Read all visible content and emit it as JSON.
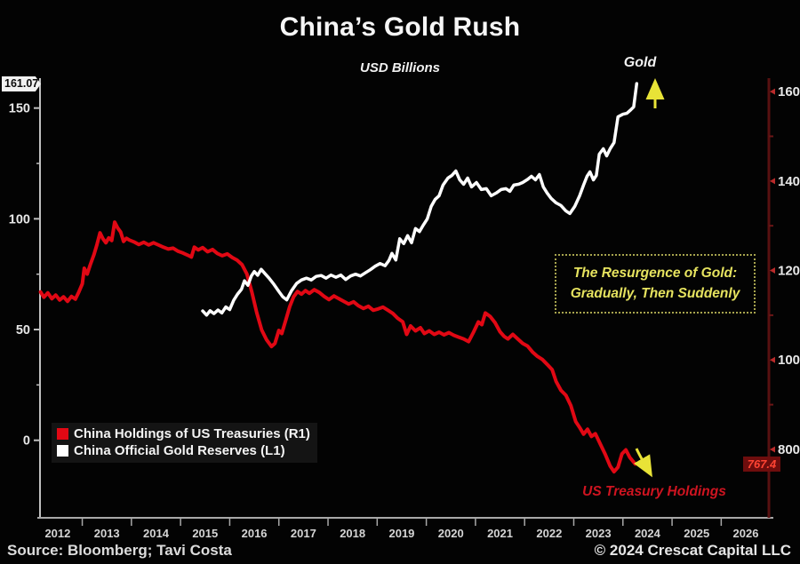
{
  "title": "China’s Gold Rush",
  "subtitle": "USD Billions",
  "labels": {
    "gold_line": "Gold",
    "treasury_line": "US Treasury Holdings"
  },
  "annotation": {
    "line1": "The Resurgence of Gold:",
    "line2": "Gradually, Then Suddenly"
  },
  "legend": [
    {
      "label": "China Holdings of US Treasuries (R1)",
      "color": "#e10814"
    },
    {
      "label": "China Official Gold Reserves (L1)",
      "color": "#ffffff"
    }
  ],
  "markers": {
    "gold_last": "161.07",
    "treasury_last": "767.4"
  },
  "footer": {
    "source": "Source: Bloomberg; Tavi Costa",
    "copyright": "© 2024 Crescat Capital LLC"
  },
  "colors": {
    "background": "#030303",
    "treasury_red": "#e10814",
    "gold_white": "#ffffff",
    "left_axis": "#c0c0c0",
    "bottom_axis": "#a8a8a8",
    "right_axis": "#581111",
    "right_tick": "#b92a2a",
    "right_minor_tick": "#6b1616",
    "axis_text": "#e8e8e8",
    "year_text": "#d5d5d5",
    "annotation_yellow": "#e6e35f",
    "arrow_yellow": "#e8e337"
  },
  "chart_data": {
    "type": "line",
    "title": "China’s Gold Rush",
    "subtitle": "USD Billions",
    "grid": false,
    "legend_position": "bottom-left",
    "x_axis": {
      "years": [
        2012,
        2013,
        2014,
        2015,
        2016,
        2017,
        2018,
        2019,
        2020,
        2021,
        2022,
        2023,
        2024,
        2025,
        2026
      ],
      "range": [
        2012.14,
        2026.97
      ]
    },
    "left_axis": {
      "series": "China Official Gold Reserves (L1)",
      "units": "USD Billions",
      "major_ticks": [
        0,
        50,
        100,
        150
      ],
      "minor_ticks": [
        25,
        75,
        125
      ],
      "range": [
        -35,
        163.5
      ],
      "last_value": 161.07
    },
    "right_axis": {
      "series": "China Holdings of US Treasuries (R1)",
      "units": "USD Billions",
      "major_ticks": [
        800,
        1000,
        1200,
        1400,
        1600
      ],
      "minor_ticks": [
        900,
        1100,
        1300,
        1500
      ],
      "range": [
        647,
        1630
      ],
      "last_value": 767.4
    },
    "series": [
      {
        "name": "China Holdings of US Treasuries (R1)",
        "axis": "right",
        "color": "#e10814",
        "width": 4,
        "points": [
          [
            2012.15,
            1152
          ],
          [
            2012.22,
            1140
          ],
          [
            2012.3,
            1150
          ],
          [
            2012.38,
            1137
          ],
          [
            2012.46,
            1145
          ],
          [
            2012.54,
            1134
          ],
          [
            2012.62,
            1141
          ],
          [
            2012.7,
            1131
          ],
          [
            2012.78,
            1142
          ],
          [
            2012.86,
            1136
          ],
          [
            2012.93,
            1152
          ],
          [
            2013.0,
            1170
          ],
          [
            2013.04,
            1205
          ],
          [
            2013.1,
            1192
          ],
          [
            2013.16,
            1212
          ],
          [
            2013.24,
            1236
          ],
          [
            2013.3,
            1258
          ],
          [
            2013.36,
            1284
          ],
          [
            2013.42,
            1271
          ],
          [
            2013.48,
            1262
          ],
          [
            2013.54,
            1273
          ],
          [
            2013.6,
            1267
          ],
          [
            2013.66,
            1308
          ],
          [
            2013.72,
            1295
          ],
          [
            2013.78,
            1286
          ],
          [
            2013.84,
            1265
          ],
          [
            2013.9,
            1272
          ],
          [
            2013.96,
            1268
          ],
          [
            2014.05,
            1264
          ],
          [
            2014.15,
            1258
          ],
          [
            2014.25,
            1263
          ],
          [
            2014.35,
            1257
          ],
          [
            2014.45,
            1262
          ],
          [
            2014.55,
            1257
          ],
          [
            2014.65,
            1252
          ],
          [
            2014.75,
            1248
          ],
          [
            2014.85,
            1250
          ],
          [
            2014.95,
            1243
          ],
          [
            2015.05,
            1239
          ],
          [
            2015.15,
            1234
          ],
          [
            2015.22,
            1230
          ],
          [
            2015.28,
            1252
          ],
          [
            2015.36,
            1246
          ],
          [
            2015.45,
            1251
          ],
          [
            2015.55,
            1242
          ],
          [
            2015.65,
            1247
          ],
          [
            2015.75,
            1238
          ],
          [
            2015.85,
            1233
          ],
          [
            2015.95,
            1237
          ],
          [
            2016.05,
            1229
          ],
          [
            2016.15,
            1223
          ],
          [
            2016.25,
            1213
          ],
          [
            2016.35,
            1192
          ],
          [
            2016.45,
            1152
          ],
          [
            2016.55,
            1106
          ],
          [
            2016.65,
            1067
          ],
          [
            2016.75,
            1045
          ],
          [
            2016.85,
            1030
          ],
          [
            2016.92,
            1037
          ],
          [
            2017.0,
            1066
          ],
          [
            2017.06,
            1059
          ],
          [
            2017.14,
            1089
          ],
          [
            2017.22,
            1119
          ],
          [
            2017.3,
            1141
          ],
          [
            2017.38,
            1153
          ],
          [
            2017.46,
            1147
          ],
          [
            2017.54,
            1155
          ],
          [
            2017.62,
            1149
          ],
          [
            2017.72,
            1157
          ],
          [
            2017.82,
            1151
          ],
          [
            2017.92,
            1142
          ],
          [
            2018.02,
            1135
          ],
          [
            2018.12,
            1143
          ],
          [
            2018.22,
            1137
          ],
          [
            2018.32,
            1131
          ],
          [
            2018.42,
            1125
          ],
          [
            2018.52,
            1130
          ],
          [
            2018.62,
            1121
          ],
          [
            2018.72,
            1115
          ],
          [
            2018.82,
            1120
          ],
          [
            2018.92,
            1111
          ],
          [
            2019.02,
            1114
          ],
          [
            2019.12,
            1118
          ],
          [
            2019.22,
            1111
          ],
          [
            2019.32,
            1104
          ],
          [
            2019.42,
            1093
          ],
          [
            2019.52,
            1085
          ],
          [
            2019.6,
            1057
          ],
          [
            2019.68,
            1076
          ],
          [
            2019.78,
            1065
          ],
          [
            2019.88,
            1072
          ],
          [
            2019.96,
            1059
          ],
          [
            2020.06,
            1065
          ],
          [
            2020.16,
            1057
          ],
          [
            2020.26,
            1062
          ],
          [
            2020.36,
            1056
          ],
          [
            2020.46,
            1061
          ],
          [
            2020.56,
            1055
          ],
          [
            2020.66,
            1051
          ],
          [
            2020.76,
            1047
          ],
          [
            2020.86,
            1041
          ],
          [
            2020.96,
            1062
          ],
          [
            2021.06,
            1085
          ],
          [
            2021.13,
            1079
          ],
          [
            2021.2,
            1105
          ],
          [
            2021.3,
            1097
          ],
          [
            2021.4,
            1083
          ],
          [
            2021.5,
            1063
          ],
          [
            2021.58,
            1053
          ],
          [
            2021.66,
            1047
          ],
          [
            2021.76,
            1057
          ],
          [
            2021.86,
            1047
          ],
          [
            2021.96,
            1037
          ],
          [
            2022.06,
            1031
          ],
          [
            2022.16,
            1018
          ],
          [
            2022.26,
            1008
          ],
          [
            2022.36,
            1001
          ],
          [
            2022.46,
            990
          ],
          [
            2022.56,
            978
          ],
          [
            2022.64,
            952
          ],
          [
            2022.74,
            932
          ],
          [
            2022.84,
            921
          ],
          [
            2022.94,
            898
          ],
          [
            2023.04,
            862
          ],
          [
            2023.12,
            849
          ],
          [
            2023.2,
            834
          ],
          [
            2023.28,
            845
          ],
          [
            2023.36,
            829
          ],
          [
            2023.44,
            835
          ],
          [
            2023.54,
            812
          ],
          [
            2023.64,
            789
          ],
          [
            2023.74,
            763
          ],
          [
            2023.82,
            750
          ],
          [
            2023.9,
            760
          ],
          [
            2023.98,
            790
          ],
          [
            2024.06,
            799
          ],
          [
            2024.14,
            782
          ],
          [
            2024.25,
            767.4
          ]
        ]
      },
      {
        "name": "China Official Gold Reserves (L1)",
        "axis": "left",
        "color": "#ffffff",
        "width": 3.5,
        "points": [
          [
            2015.45,
            58.4
          ],
          [
            2015.53,
            56.5
          ],
          [
            2015.6,
            58.5
          ],
          [
            2015.68,
            57.2
          ],
          [
            2015.76,
            58.8
          ],
          [
            2015.84,
            57.5
          ],
          [
            2015.92,
            60.2
          ],
          [
            2016.0,
            59.0
          ],
          [
            2016.08,
            63.2
          ],
          [
            2016.16,
            66.0
          ],
          [
            2016.24,
            68.2
          ],
          [
            2016.3,
            72.0
          ],
          [
            2016.37,
            70.0
          ],
          [
            2016.44,
            74.2
          ],
          [
            2016.5,
            76.2
          ],
          [
            2016.57,
            74.5
          ],
          [
            2016.64,
            77.2
          ],
          [
            2016.72,
            75.2
          ],
          [
            2016.8,
            73.2
          ],
          [
            2016.9,
            70.4
          ],
          [
            2017.0,
            67.2
          ],
          [
            2017.08,
            64.8
          ],
          [
            2017.16,
            63.4
          ],
          [
            2017.26,
            67.6
          ],
          [
            2017.36,
            70.8
          ],
          [
            2017.46,
            72.4
          ],
          [
            2017.56,
            73.2
          ],
          [
            2017.66,
            72.4
          ],
          [
            2017.76,
            74.0
          ],
          [
            2017.86,
            74.4
          ],
          [
            2017.96,
            73.2
          ],
          [
            2018.06,
            74.6
          ],
          [
            2018.16,
            73.6
          ],
          [
            2018.26,
            74.6
          ],
          [
            2018.36,
            72.6
          ],
          [
            2018.46,
            74.2
          ],
          [
            2018.56,
            75.0
          ],
          [
            2018.66,
            74.2
          ],
          [
            2018.76,
            75.6
          ],
          [
            2018.86,
            77.0
          ],
          [
            2018.96,
            78.6
          ],
          [
            2019.06,
            79.8
          ],
          [
            2019.16,
            78.8
          ],
          [
            2019.24,
            81.2
          ],
          [
            2019.3,
            84.4
          ],
          [
            2019.38,
            81.4
          ],
          [
            2019.46,
            91.0
          ],
          [
            2019.54,
            88.8
          ],
          [
            2019.62,
            92.4
          ],
          [
            2019.7,
            89.2
          ],
          [
            2019.78,
            95.6
          ],
          [
            2019.86,
            94.2
          ],
          [
            2019.94,
            97.2
          ],
          [
            2020.02,
            100.0
          ],
          [
            2020.1,
            105.6
          ],
          [
            2020.18,
            108.8
          ],
          [
            2020.26,
            110.4
          ],
          [
            2020.34,
            115.2
          ],
          [
            2020.44,
            118.4
          ],
          [
            2020.52,
            119.6
          ],
          [
            2020.6,
            121.6
          ],
          [
            2020.68,
            117.6
          ],
          [
            2020.76,
            115.6
          ],
          [
            2020.84,
            118.4
          ],
          [
            2020.92,
            114.4
          ],
          [
            2021.02,
            116.4
          ],
          [
            2021.12,
            113.2
          ],
          [
            2021.22,
            113.6
          ],
          [
            2021.32,
            110.4
          ],
          [
            2021.42,
            111.6
          ],
          [
            2021.52,
            113.2
          ],
          [
            2021.62,
            113.6
          ],
          [
            2021.7,
            112.4
          ],
          [
            2021.78,
            115.2
          ],
          [
            2021.88,
            115.6
          ],
          [
            2021.96,
            116.4
          ],
          [
            2022.06,
            117.8
          ],
          [
            2022.14,
            119.2
          ],
          [
            2022.22,
            117.6
          ],
          [
            2022.3,
            120.0
          ],
          [
            2022.38,
            114.4
          ],
          [
            2022.46,
            111.6
          ],
          [
            2022.54,
            109.2
          ],
          [
            2022.64,
            107.2
          ],
          [
            2022.74,
            106.0
          ],
          [
            2022.84,
            103.6
          ],
          [
            2022.92,
            102.4
          ],
          [
            2023.02,
            105.6
          ],
          [
            2023.12,
            110.4
          ],
          [
            2023.2,
            115.2
          ],
          [
            2023.27,
            119.2
          ],
          [
            2023.33,
            121.2
          ],
          [
            2023.4,
            117.6
          ],
          [
            2023.46,
            119.6
          ],
          [
            2023.52,
            129.2
          ],
          [
            2023.6,
            131.6
          ],
          [
            2023.67,
            128.4
          ],
          [
            2023.74,
            131.6
          ],
          [
            2023.82,
            134.4
          ],
          [
            2023.9,
            146.0
          ],
          [
            2024.0,
            147.2
          ],
          [
            2024.08,
            147.6
          ],
          [
            2024.16,
            149.2
          ],
          [
            2024.22,
            150.5
          ],
          [
            2024.28,
            161.07
          ]
        ]
      }
    ]
  }
}
